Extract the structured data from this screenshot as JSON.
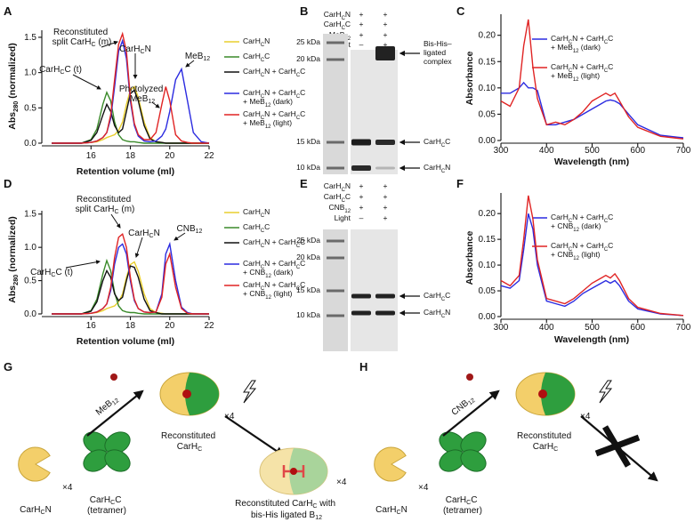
{
  "chart_data": [
    {
      "type": "line",
      "label": "A",
      "x_label": "Retention volume (ml)",
      "y_label": "Abs280 (normalized)",
      "x": [
        14,
        15,
        15.5,
        16,
        16.3,
        16.6,
        16.8,
        17.0,
        17.2,
        17.4,
        17.6,
        17.8,
        18.0,
        18.2,
        18.4,
        18.7,
        19.0,
        19.3,
        19.6,
        19.8,
        20.0,
        20.3,
        20.6,
        20.9,
        21.2,
        21.6,
        22
      ],
      "xlim": [
        13.5,
        22
      ],
      "xticks": [
        16,
        18,
        20,
        22
      ],
      "ylim": [
        0,
        1.6
      ],
      "yticks": [
        {
          "value": 0,
          "label": "0.0"
        },
        0.5,
        {
          "value": 1,
          "label": "1.0"
        },
        1.5
      ],
      "series": [
        {
          "name": "CarHCN",
          "color": "#e9cf2e",
          "values": [
            0,
            0,
            0,
            0.01,
            0.02,
            0.05,
            0.08,
            0.1,
            0.12,
            0.18,
            0.3,
            0.55,
            0.75,
            0.8,
            0.65,
            0.3,
            0.08,
            0.02,
            0.01,
            0,
            0,
            0,
            0,
            0,
            0,
            0,
            0
          ]
        },
        {
          "name": "CarHCC",
          "color": "#3a8a2a",
          "values": [
            0,
            0,
            0,
            0.05,
            0.2,
            0.55,
            0.72,
            0.6,
            0.3,
            0.12,
            0.05,
            0.03,
            0.02,
            0.02,
            0.01,
            0,
            0,
            0,
            0,
            0,
            0,
            0,
            0,
            0,
            0,
            0,
            0
          ]
        },
        {
          "name": "CarHCN + CarHCC",
          "color": "#111111",
          "values": [
            0,
            0,
            0,
            0.04,
            0.15,
            0.4,
            0.55,
            0.45,
            0.25,
            0.15,
            0.2,
            0.45,
            0.7,
            0.75,
            0.6,
            0.25,
            0.06,
            0.02,
            0.01,
            0,
            0,
            0,
            0,
            0,
            0,
            0,
            0
          ]
        },
        {
          "name": "CarHCN + CarHCC + MeB12 (dark)",
          "color": "#2b2be0",
          "values": [
            0,
            0,
            0,
            0.01,
            0.03,
            0.08,
            0.15,
            0.35,
            0.8,
            1.3,
            1.45,
            1.2,
            0.6,
            0.25,
            0.1,
            0.03,
            0.02,
            0.03,
            0.1,
            0.2,
            0.45,
            0.9,
            1.05,
            0.6,
            0.15,
            0.02,
            0
          ]
        },
        {
          "name": "CarHCN + CarHCC + MeB12 (light)",
          "color": "#e02424",
          "values": [
            0,
            0,
            0,
            0.01,
            0.03,
            0.08,
            0.15,
            0.4,
            0.9,
            1.4,
            1.55,
            1.3,
            0.65,
            0.28,
            0.12,
            0.05,
            0.05,
            0.15,
            0.55,
            0.8,
            0.6,
            0.12,
            0.03,
            0.01,
            0,
            0,
            0
          ]
        }
      ],
      "annotations": [
        "Reconstituted split CarHC (m)",
        "CarHCN",
        "CarHCC (t)",
        "Photolyzed MeB12",
        "MeB12"
      ]
    },
    {
      "type": "line",
      "label": "C",
      "x_label": "Wavelength (nm)",
      "y_label": "Absorbance",
      "x": [
        300,
        320,
        340,
        350,
        360,
        370,
        380,
        400,
        420,
        440,
        460,
        480,
        500,
        520,
        530,
        540,
        550,
        560,
        580,
        600,
        650,
        700
      ],
      "xlim": [
        300,
        700
      ],
      "xticks": [
        300,
        400,
        500,
        600,
        700
      ],
      "ylim": [
        0,
        0.24
      ],
      "yticks": [
        {
          "value": 0,
          "label": "0.00"
        },
        0.05,
        {
          "value": 0.1,
          "label": "0.10"
        },
        0.15,
        {
          "value": 0.2,
          "label": "0.20"
        }
      ],
      "series": [
        {
          "name": "CarHCN + CarHCC + MeB12 (dark)",
          "color": "#2b2be0",
          "values": [
            0.09,
            0.09,
            0.1,
            0.11,
            0.1,
            0.1,
            0.095,
            0.03,
            0.03,
            0.035,
            0.04,
            0.05,
            0.06,
            0.07,
            0.075,
            0.077,
            0.075,
            0.07,
            0.05,
            0.03,
            0.01,
            0.005
          ]
        },
        {
          "name": "CarHCN + CarHCC + MeB12 (light)",
          "color": "#e02424",
          "values": [
            0.075,
            0.065,
            0.1,
            0.18,
            0.23,
            0.14,
            0.08,
            0.03,
            0.035,
            0.03,
            0.04,
            0.055,
            0.075,
            0.085,
            0.09,
            0.085,
            0.09,
            0.075,
            0.045,
            0.025,
            0.008,
            0.003
          ]
        }
      ]
    },
    {
      "type": "line",
      "label": "D",
      "x_label": "Retention volume (ml)",
      "y_label": "Abs280 (normalized)",
      "x": [
        14,
        15,
        15.5,
        16,
        16.3,
        16.6,
        16.8,
        17.0,
        17.2,
        17.4,
        17.6,
        17.8,
        18.0,
        18.2,
        18.4,
        18.7,
        19.0,
        19.3,
        19.6,
        19.8,
        20.0,
        20.3,
        20.6,
        20.9,
        21.2,
        21.6,
        22
      ],
      "xlim": [
        13.5,
        22
      ],
      "xticks": [
        16,
        18,
        20,
        22
      ],
      "ylim": [
        0,
        1.55
      ],
      "yticks": [
        {
          "value": 0,
          "label": "0.0"
        },
        0.5,
        {
          "value": 1,
          "label": "1.0"
        },
        1.5
      ],
      "series": [
        {
          "name": "CarHCN",
          "color": "#e9cf2e",
          "values": [
            0,
            0,
            0,
            0.01,
            0.02,
            0.05,
            0.08,
            0.1,
            0.12,
            0.18,
            0.3,
            0.55,
            0.74,
            0.78,
            0.64,
            0.3,
            0.08,
            0.02,
            0.01,
            0,
            0,
            0,
            0,
            0,
            0,
            0,
            0
          ]
        },
        {
          "name": "CarHCC",
          "color": "#3a8a2a",
          "values": [
            0,
            0,
            0,
            0.05,
            0.22,
            0.6,
            0.8,
            0.65,
            0.32,
            0.12,
            0.05,
            0.03,
            0.02,
            0.02,
            0.01,
            0,
            0,
            0,
            0,
            0,
            0,
            0,
            0,
            0,
            0,
            0,
            0
          ]
        },
        {
          "name": "CarHCN + CarHCC",
          "color": "#111111",
          "values": [
            0,
            0,
            0,
            0.04,
            0.18,
            0.5,
            0.65,
            0.55,
            0.3,
            0.2,
            0.25,
            0.5,
            0.72,
            0.7,
            0.55,
            0.22,
            0.05,
            0.02,
            0,
            0,
            0,
            0,
            0,
            0,
            0,
            0,
            0
          ]
        },
        {
          "name": "CarHCN + CarHCC + CNB12 (dark)",
          "color": "#2b2be0",
          "values": [
            0,
            0,
            0,
            0.01,
            0.03,
            0.08,
            0.15,
            0.35,
            0.75,
            1.0,
            1.05,
            0.9,
            0.5,
            0.2,
            0.08,
            0.03,
            0.02,
            0.03,
            0.3,
            0.9,
            1.05,
            0.5,
            0.1,
            0.02,
            0,
            0,
            0
          ]
        },
        {
          "name": "CarHCN + CarHCC + CNB12 (light)",
          "color": "#e02424",
          "values": [
            0,
            0,
            0,
            0.01,
            0.03,
            0.08,
            0.15,
            0.4,
            0.85,
            1.15,
            1.2,
            1.0,
            0.55,
            0.22,
            0.08,
            0.03,
            0.02,
            0.03,
            0.25,
            0.75,
            0.9,
            0.4,
            0.08,
            0.01,
            0,
            0,
            0
          ]
        }
      ],
      "annotations": [
        "Reconstituted split CarHC (m)",
        "CarHCN",
        "CarHCC (t)",
        "CNB12"
      ]
    },
    {
      "type": "line",
      "label": "F",
      "x_label": "Wavelength (nm)",
      "y_label": "Absorbance",
      "x": [
        300,
        320,
        340,
        350,
        360,
        370,
        380,
        400,
        420,
        440,
        460,
        480,
        500,
        520,
        530,
        540,
        550,
        560,
        580,
        600,
        650,
        700
      ],
      "xlim": [
        300,
        700
      ],
      "xticks": [
        300,
        400,
        500,
        600,
        700
      ],
      "ylim": [
        0,
        0.24
      ],
      "yticks": [
        {
          "value": 0,
          "label": "0.00"
        },
        0.05,
        {
          "value": 0.1,
          "label": "0.10"
        },
        0.15,
        {
          "value": 0.2,
          "label": "0.20"
        }
      ],
      "series": [
        {
          "name": "CarHCN + CarHCC + CNB12 (dark)",
          "color": "#2b2be0",
          "values": [
            0.06,
            0.055,
            0.07,
            0.13,
            0.2,
            0.17,
            0.1,
            0.03,
            0.025,
            0.02,
            0.03,
            0.045,
            0.055,
            0.065,
            0.07,
            0.065,
            0.07,
            0.06,
            0.03,
            0.015,
            0.005,
            0.002
          ]
        },
        {
          "name": "CarHCN + CarHCC + CNB12 (light)",
          "color": "#e02424",
          "values": [
            0.07,
            0.06,
            0.08,
            0.15,
            0.235,
            0.19,
            0.11,
            0.035,
            0.03,
            0.025,
            0.035,
            0.05,
            0.065,
            0.075,
            0.08,
            0.075,
            0.083,
            0.07,
            0.035,
            0.018,
            0.006,
            0.002
          ]
        }
      ]
    }
  ],
  "gels": [
    {
      "label": "B",
      "rows": [
        {
          "name": "CarHCN",
          "lanes": [
            "+",
            "+"
          ]
        },
        {
          "name": "CarHCC",
          "lanes": [
            "+",
            "+"
          ]
        },
        {
          "name": "MeB12",
          "lanes": [
            "+",
            "+"
          ]
        },
        {
          "name": "Light",
          "lanes": [
            "–",
            "+"
          ]
        }
      ],
      "markers": [
        "25 kDa",
        "20 kDa",
        "15 kDa",
        "10 kDa"
      ],
      "arrows": [
        "Bis-His–ligated complex",
        "CarHCC",
        "CarHCN"
      ]
    },
    {
      "label": "E",
      "rows": [
        {
          "name": "CarHCN",
          "lanes": [
            "+",
            "+"
          ]
        },
        {
          "name": "CarHCC",
          "lanes": [
            "+",
            "+"
          ]
        },
        {
          "name": "CNB12",
          "lanes": [
            "+",
            "+"
          ]
        },
        {
          "name": "Light",
          "lanes": [
            "–",
            "+"
          ]
        }
      ],
      "markers": [
        "25 kDa",
        "20 kDa",
        "15 kDa",
        "10 kDa"
      ],
      "arrows": [
        "CarHCC",
        "CarHCN"
      ]
    }
  ],
  "schemes": [
    {
      "label": "G",
      "ligand": "MeB12",
      "count": "×4",
      "monomer": "CarHCN",
      "tetramer": "CarHCC (tetramer)",
      "reconstituted": "Reconstituted CarHC",
      "product": "Reconstituted CarHC with bis-His ligated B12"
    },
    {
      "label": "H",
      "ligand": "CNB12",
      "count": "×4",
      "monomer": "CarHCN",
      "tetramer": "CarHCC (tetramer)",
      "reconstituted": "Reconstituted CarHC"
    }
  ]
}
